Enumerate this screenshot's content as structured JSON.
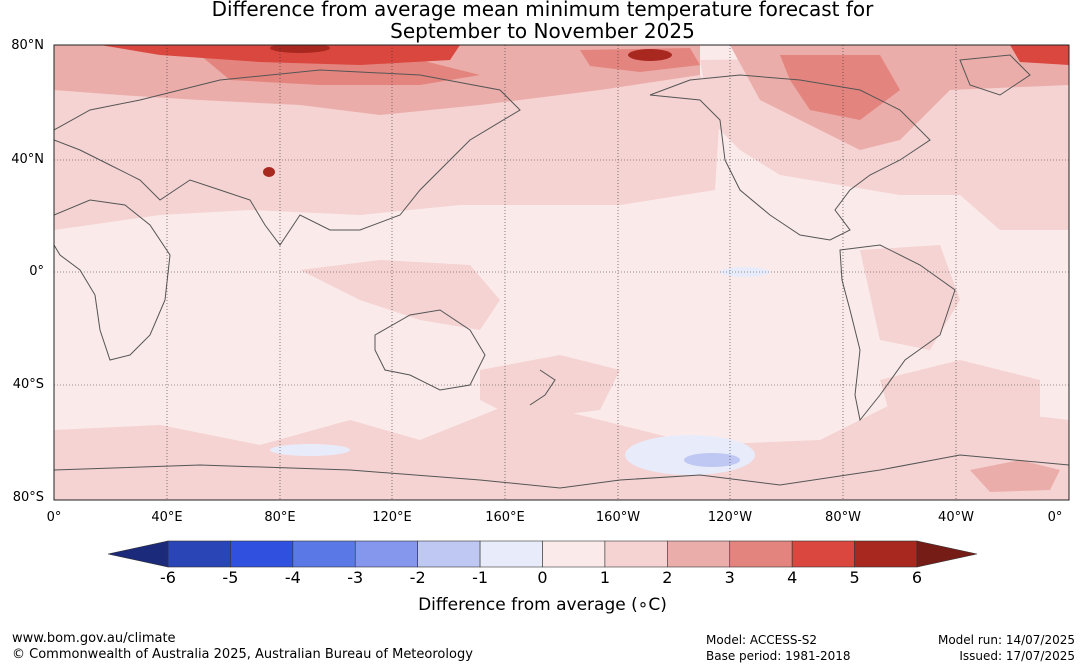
{
  "title_line1": "Difference from average mean minimum temperature forecast for",
  "title_line2": "September to November 2025",
  "lat_labels": [
    "80°N",
    "40°N",
    "0°",
    "40°S",
    "80°S"
  ],
  "lon_labels": [
    "0°",
    "40°E",
    "80°E",
    "120°E",
    "160°E",
    "160°W",
    "120°W",
    "80°W",
    "40°W",
    "0°"
  ],
  "colorbar": {
    "label": "Difference from average (∘C)",
    "ticks": [
      "-6",
      "-5",
      "-4",
      "-3",
      "-2",
      "-1",
      "0",
      "1",
      "2",
      "3",
      "4",
      "5",
      "6"
    ],
    "colors": [
      "#1b2a7a",
      "#2a45b5",
      "#3050e0",
      "#5a78e6",
      "#8497ec",
      "#bec8f2",
      "#e8ecfa",
      "#fbeaea",
      "#f4d3d2",
      "#ebadaa",
      "#e4847e",
      "#d9473f",
      "#a82820",
      "#751c17"
    ]
  },
  "footer": {
    "left1": "www.bom.gov.au/climate",
    "left2": "© Commonwealth of Australia 2025, Australian Bureau of Meteorology",
    "model": "Model: ACCESS-S2",
    "base": "Base period: 1981-2018",
    "run": "Model run: 14/07/2025",
    "issued": "Issued: 17/07/2025"
  }
}
